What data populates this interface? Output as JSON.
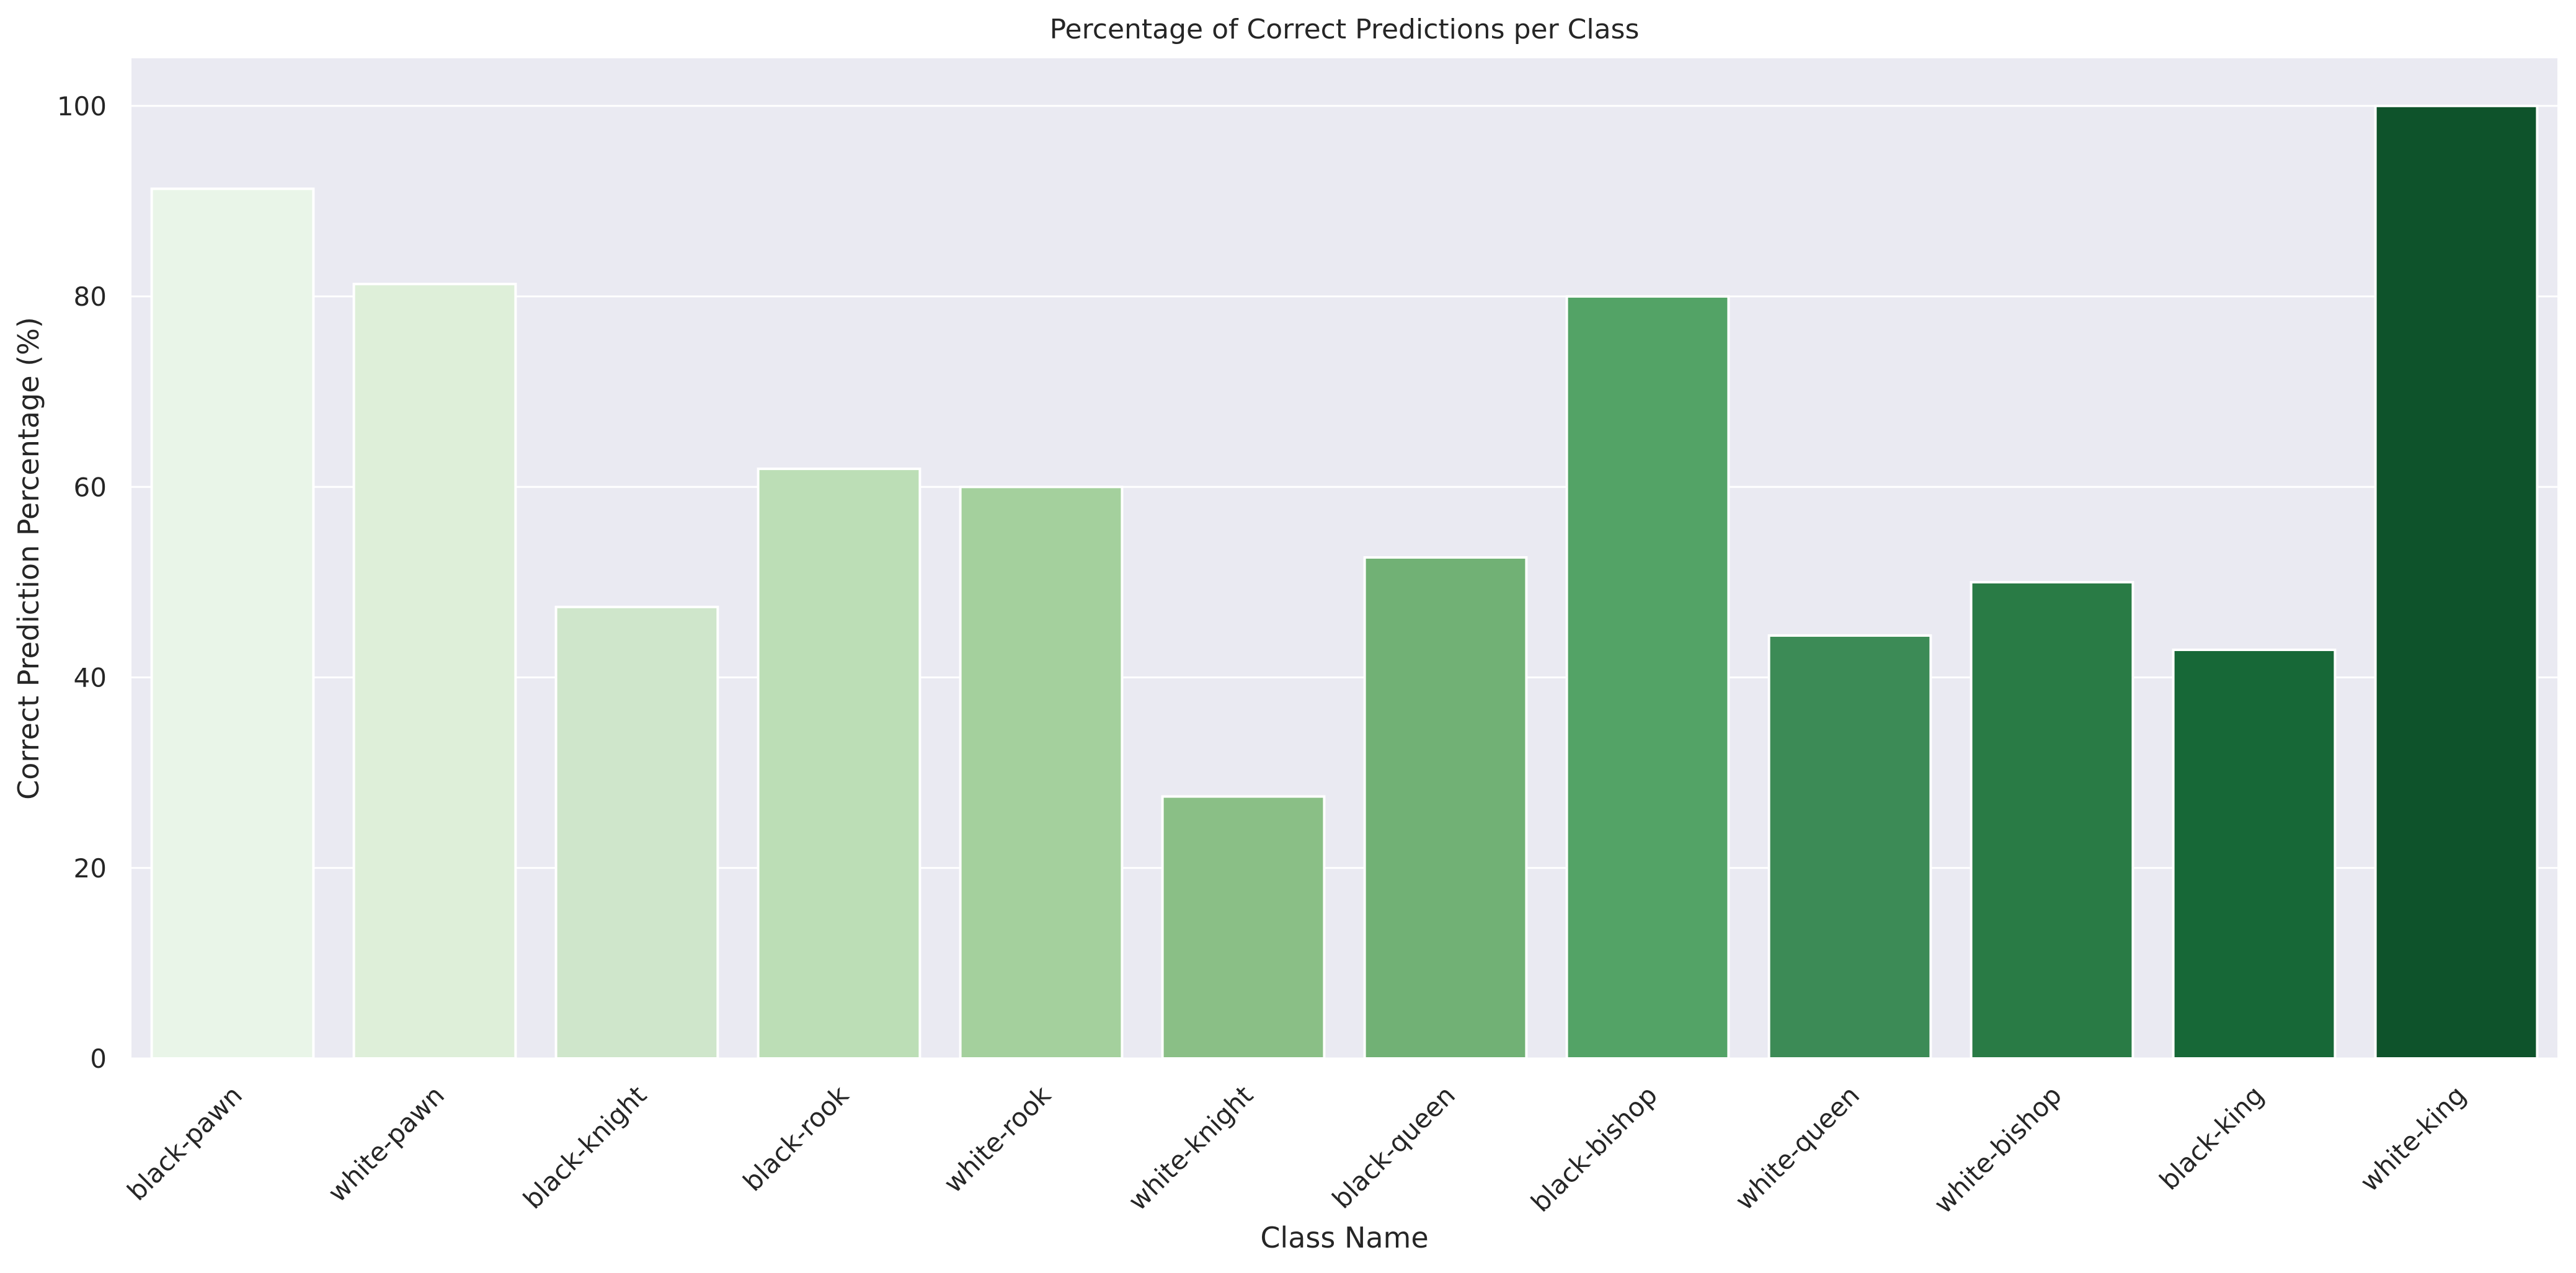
{
  "chart_data": {
    "type": "bar",
    "title": "Percentage of Correct Predictions per Class",
    "xlabel": "Class Name",
    "ylabel": "Correct Prediction Percentage (%)",
    "categories": [
      "black-pawn",
      "white-pawn",
      "black-knight",
      "black-rook",
      "white-rook",
      "white-knight",
      "black-queen",
      "black-bishop",
      "white-queen",
      "white-bishop",
      "black-king",
      "white-king"
    ],
    "values": [
      91.3,
      81.3,
      47.4,
      61.9,
      60.0,
      27.5,
      52.6,
      80.0,
      44.4,
      50.0,
      42.9,
      100.0
    ],
    "colors": [
      "#e9f5e8",
      "#deefd9",
      "#cfe6cb",
      "#bcdeb6",
      "#a4d09d",
      "#8abf86",
      "#71b175",
      "#53a366",
      "#3c8b56",
      "#297b45",
      "#176837",
      "#0e532b"
    ],
    "yticks": [
      0,
      20,
      40,
      60,
      80,
      100
    ],
    "ylim": [
      0,
      105
    ],
    "grid": true,
    "background": "#eaeaf2"
  }
}
